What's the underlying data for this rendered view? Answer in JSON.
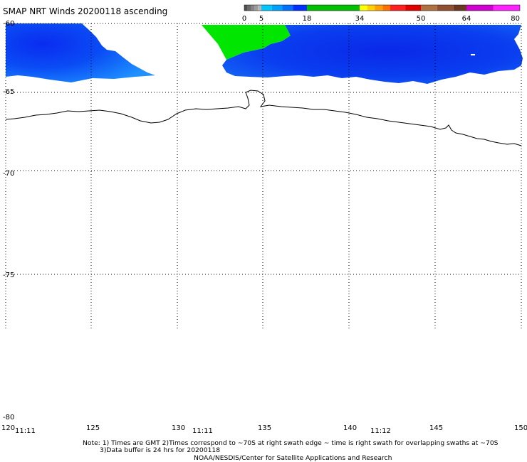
{
  "title": "SMAP NRT Winds 20200118 ascending",
  "colorbar": {
    "tick_labels": [
      {
        "label": "0",
        "value": 0
      },
      {
        "label": "5",
        "value": 5
      },
      {
        "label": "18",
        "value": 18
      },
      {
        "label": "34",
        "value": 34
      },
      {
        "label": "50",
        "value": 50
      },
      {
        "label": "64",
        "value": 64
      },
      {
        "label": "80",
        "value": 80
      }
    ],
    "segments": [
      {
        "from": 0,
        "to": 1,
        "color": "#505050"
      },
      {
        "from": 1,
        "to": 2,
        "color": "#6a6a6a"
      },
      {
        "from": 2,
        "to": 3,
        "color": "#848484"
      },
      {
        "from": 3,
        "to": 4,
        "color": "#9c9c9c"
      },
      {
        "from": 4,
        "to": 5,
        "color": "#b8b8b8"
      },
      {
        "from": 5,
        "to": 8,
        "color": "#00c8ff"
      },
      {
        "from": 8,
        "to": 11,
        "color": "#00a0ff"
      },
      {
        "from": 11,
        "to": 14,
        "color": "#0070ff"
      },
      {
        "from": 14,
        "to": 18,
        "color": "#0030ff"
      },
      {
        "from": 18,
        "to": 34,
        "color": "#00c000"
      },
      {
        "from": 34,
        "to": 36,
        "color": "#ffff00"
      },
      {
        "from": 36,
        "to": 38,
        "color": "#ffd000"
      },
      {
        "from": 38,
        "to": 40,
        "color": "#ffa000"
      },
      {
        "from": 40,
        "to": 42,
        "color": "#ff7000"
      },
      {
        "from": 42,
        "to": 46,
        "color": "#ff2020"
      },
      {
        "from": 46,
        "to": 50,
        "color": "#e00000"
      },
      {
        "from": 50,
        "to": 55,
        "color": "#b07040"
      },
      {
        "from": 55,
        "to": 60,
        "color": "#905030"
      },
      {
        "from": 60,
        "to": 64,
        "color": "#6a3820"
      },
      {
        "from": 64,
        "to": 72,
        "color": "#d000d0"
      },
      {
        "from": 72,
        "to": 80,
        "color": "#ff20ff"
      }
    ]
  },
  "axes": {
    "lat_labels": [
      "-60",
      "-65",
      "-70",
      "-75",
      "-80"
    ],
    "lon_labels": [
      "120",
      "125",
      "130",
      "135",
      "140",
      "145",
      "150"
    ],
    "lon_values": [
      120,
      125,
      130,
      135,
      140,
      145,
      150
    ],
    "lat_values": [
      -60,
      -65,
      -70,
      -75,
      -80
    ],
    "lon_range": [
      120,
      150
    ],
    "lat_range": [
      -80,
      -60
    ],
    "grid": true
  },
  "swath_times": [
    {
      "time": "11:11",
      "lon": 121
    },
    {
      "time": "11:11",
      "lon": 131.2
    },
    {
      "time": "11:12",
      "lon": 141.6
    }
  ],
  "notes": [
    "Note: 1) Times are GMT 2)Times correspond to ~70S at right swath edge ~ time is right swath for overlapping swaths at ~70S",
    "3)Data buffer is 24 hrs for 20200118",
    "NOAA/NESDIS/Center for Satellite Applications and Research"
  ],
  "wind_fields": [
    {
      "name": "left-swath-blue",
      "color_range": "5-18"
    },
    {
      "name": "right-swath-blue",
      "color_range": "5-18"
    },
    {
      "name": "right-swath-green",
      "color_range": "18-34"
    }
  ]
}
